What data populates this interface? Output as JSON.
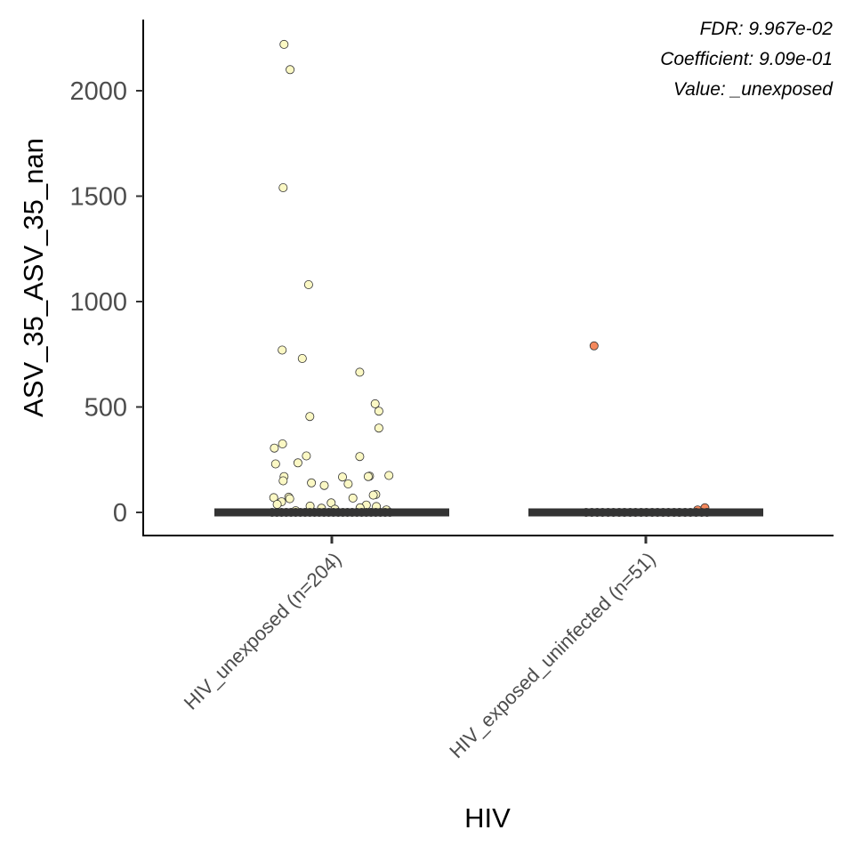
{
  "chart_data": {
    "type": "scatter",
    "xlabel": "HIV",
    "ylabel": "ASV_35_ASV_35_nan",
    "ylim": [
      -110,
      2320
    ],
    "yticks": [
      0,
      500,
      1000,
      1500,
      2000
    ],
    "grid": false,
    "annotations": [
      "FDR: 9.967e-02",
      "Coefficient: 9.09e-01",
      "Value: _unexposed"
    ],
    "categories": [
      "HIV_unexposed (n=204)",
      "HIV_exposed_uninfected (n=51)"
    ],
    "median_lines": [
      0,
      0
    ],
    "colors": {
      "HIV_unexposed": "#fbf8c4",
      "HIV_exposed_uninfected": "#f4885c",
      "median": "#333333",
      "point_edge": "#333333",
      "axis": "#000000"
    },
    "series": [
      {
        "category": "HIV_unexposed (n=204)",
        "points": [
          {
            "dx": -0.152,
            "y": 2220
          },
          {
            "dx": -0.133,
            "y": 2100
          },
          {
            "dx": -0.155,
            "y": 1540
          },
          {
            "dx": -0.074,
            "y": 1080
          },
          {
            "dx": -0.158,
            "y": 770
          },
          {
            "dx": -0.094,
            "y": 730
          },
          {
            "dx": 0.089,
            "y": 665
          },
          {
            "dx": 0.138,
            "y": 515
          },
          {
            "dx": 0.15,
            "y": 480
          },
          {
            "dx": -0.07,
            "y": 455
          },
          {
            "dx": 0.15,
            "y": 400
          },
          {
            "dx": -0.157,
            "y": 325
          },
          {
            "dx": -0.183,
            "y": 305
          },
          {
            "dx": -0.081,
            "y": 268
          },
          {
            "dx": 0.089,
            "y": 265
          },
          {
            "dx": -0.108,
            "y": 235
          },
          {
            "dx": -0.179,
            "y": 230
          },
          {
            "dx": 0.182,
            "y": 175
          },
          {
            "dx": 0.12,
            "y": 172
          },
          {
            "dx": 0.034,
            "y": 168
          },
          {
            "dx": -0.152,
            "y": 170
          },
          {
            "dx": 0.116,
            "y": 170
          },
          {
            "dx": -0.155,
            "y": 150
          },
          {
            "dx": -0.065,
            "y": 140
          },
          {
            "dx": 0.052,
            "y": 135
          },
          {
            "dx": -0.024,
            "y": 128
          },
          {
            "dx": 0.14,
            "y": 85
          },
          {
            "dx": 0.132,
            "y": 82
          },
          {
            "dx": -0.137,
            "y": 72
          },
          {
            "dx": -0.185,
            "y": 70
          },
          {
            "dx": -0.134,
            "y": 65
          },
          {
            "dx": 0.067,
            "y": 68
          },
          {
            "dx": -0.16,
            "y": 50
          },
          {
            "dx": -0.174,
            "y": 38
          },
          {
            "dx": -0.002,
            "y": 45
          },
          {
            "dx": 0.11,
            "y": 35
          },
          {
            "dx": -0.069,
            "y": 30
          },
          {
            "dx": 0.142,
            "y": 28
          },
          {
            "dx": 0.09,
            "y": 22
          },
          {
            "dx": -0.033,
            "y": 20
          },
          {
            "dx": 0.01,
            "y": 15
          },
          {
            "dx": 0.174,
            "y": 12
          },
          {
            "dx": -0.115,
            "y": 8
          },
          {
            "dx": -0.19,
            "y": 0
          },
          {
            "dx": -0.175,
            "y": 0
          },
          {
            "dx": -0.16,
            "y": 0
          },
          {
            "dx": -0.145,
            "y": 0
          },
          {
            "dx": -0.13,
            "y": 0
          },
          {
            "dx": -0.115,
            "y": 0
          },
          {
            "dx": -0.1,
            "y": 0
          },
          {
            "dx": -0.085,
            "y": 0
          },
          {
            "dx": -0.07,
            "y": 0
          },
          {
            "dx": -0.055,
            "y": 0
          },
          {
            "dx": -0.04,
            "y": 0
          },
          {
            "dx": -0.025,
            "y": 0
          },
          {
            "dx": -0.01,
            "y": 0
          },
          {
            "dx": 0.005,
            "y": 0
          },
          {
            "dx": 0.02,
            "y": 0
          },
          {
            "dx": 0.035,
            "y": 0
          },
          {
            "dx": 0.05,
            "y": 0
          },
          {
            "dx": 0.065,
            "y": 0
          },
          {
            "dx": 0.08,
            "y": 0
          },
          {
            "dx": 0.095,
            "y": 0
          },
          {
            "dx": 0.11,
            "y": 0
          },
          {
            "dx": 0.125,
            "y": 0
          },
          {
            "dx": 0.14,
            "y": 0
          },
          {
            "dx": 0.155,
            "y": 0
          },
          {
            "dx": 0.17,
            "y": 0
          },
          {
            "dx": 0.185,
            "y": 0
          }
        ]
      },
      {
        "category": "HIV_exposed_uninfected (n=51)",
        "points": [
          {
            "dx": -0.165,
            "y": 790
          },
          {
            "dx": 0.188,
            "y": 22
          },
          {
            "dx": 0.165,
            "y": 12
          },
          {
            "dx": -0.19,
            "y": 0
          },
          {
            "dx": -0.172,
            "y": 0
          },
          {
            "dx": -0.155,
            "y": 0
          },
          {
            "dx": -0.138,
            "y": 0
          },
          {
            "dx": -0.12,
            "y": 0
          },
          {
            "dx": -0.103,
            "y": 0
          },
          {
            "dx": -0.085,
            "y": 0
          },
          {
            "dx": -0.068,
            "y": 0
          },
          {
            "dx": -0.05,
            "y": 0
          },
          {
            "dx": -0.033,
            "y": 0
          },
          {
            "dx": -0.015,
            "y": 0
          },
          {
            "dx": 0.002,
            "y": 0
          },
          {
            "dx": 0.02,
            "y": 0
          },
          {
            "dx": 0.037,
            "y": 0
          },
          {
            "dx": 0.055,
            "y": 0
          },
          {
            "dx": 0.072,
            "y": 0
          },
          {
            "dx": 0.09,
            "y": 0
          },
          {
            "dx": 0.107,
            "y": 0
          },
          {
            "dx": 0.125,
            "y": 0
          },
          {
            "dx": 0.142,
            "y": 0
          },
          {
            "dx": 0.16,
            "y": 0
          },
          {
            "dx": 0.178,
            "y": 0
          },
          {
            "dx": 0.195,
            "y": 0
          }
        ]
      }
    ]
  }
}
